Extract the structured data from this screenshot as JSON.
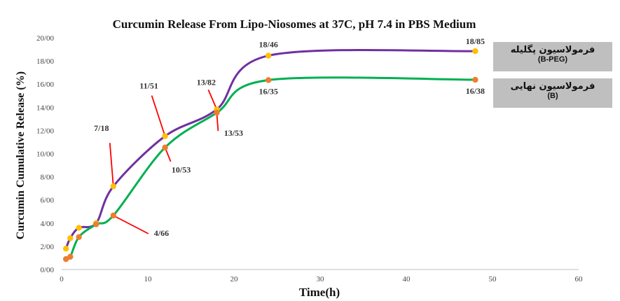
{
  "chart_data": {
    "type": "line",
    "title": "Curcumin Release From Lipo-Niosomes at 37C, pH 7.4 in PBS Medium",
    "xlabel": "Time(h)",
    "ylabel": "Curcumin Cumulative Release (%)",
    "xlim": [
      0,
      60
    ],
    "ylim": [
      0,
      20
    ],
    "x_ticks": [
      "0",
      "10",
      "20",
      "30",
      "40",
      "50",
      "60"
    ],
    "y_ticks": [
      "0/00",
      "2/00",
      "4/00",
      "6/00",
      "8/00",
      "10/00",
      "12/00",
      "14/00",
      "16/00",
      "18/00",
      "20/00"
    ],
    "grid": false,
    "legend_position": "right",
    "series": [
      {
        "name": "فرمولاسیون پگلیله",
        "code": "(B-PEG)",
        "color": "#7030a0",
        "marker_color": "#ffc000",
        "x": [
          0.5,
          1,
          2,
          4,
          6,
          12,
          18,
          24,
          48
        ],
        "y": [
          1.8,
          2.7,
          3.6,
          4.0,
          7.18,
          11.51,
          13.82,
          18.46,
          18.85
        ]
      },
      {
        "name": "فرمولاسیون نهایی",
        "code": "(B)",
        "color": "#00b050",
        "marker_color": "#ed7d31",
        "x": [
          0.5,
          1,
          2,
          4,
          6,
          12,
          18,
          24,
          48
        ],
        "y": [
          0.9,
          1.1,
          2.8,
          3.9,
          4.66,
          10.53,
          13.53,
          16.35,
          16.38
        ]
      }
    ],
    "annotations": [
      {
        "text": "7/18",
        "x": 6,
        "y": 7.18,
        "series": 0
      },
      {
        "text": "11/51",
        "x": 12,
        "y": 11.51,
        "series": 0
      },
      {
        "text": "13/82",
        "x": 18,
        "y": 13.82,
        "series": 0
      },
      {
        "text": "18/46",
        "x": 24,
        "y": 18.46,
        "series": 0
      },
      {
        "text": "18/85",
        "x": 48,
        "y": 18.85,
        "series": 0
      },
      {
        "text": "4/66",
        "x": 6,
        "y": 4.66,
        "series": 1
      },
      {
        "text": "10/53",
        "x": 12,
        "y": 10.53,
        "series": 1
      },
      {
        "text": "13/53",
        "x": 18,
        "y": 13.53,
        "series": 1
      },
      {
        "text": "16/35",
        "x": 24,
        "y": 16.35,
        "series": 1
      },
      {
        "text": "16/38",
        "x": 48,
        "y": 16.38,
        "series": 1
      }
    ]
  }
}
